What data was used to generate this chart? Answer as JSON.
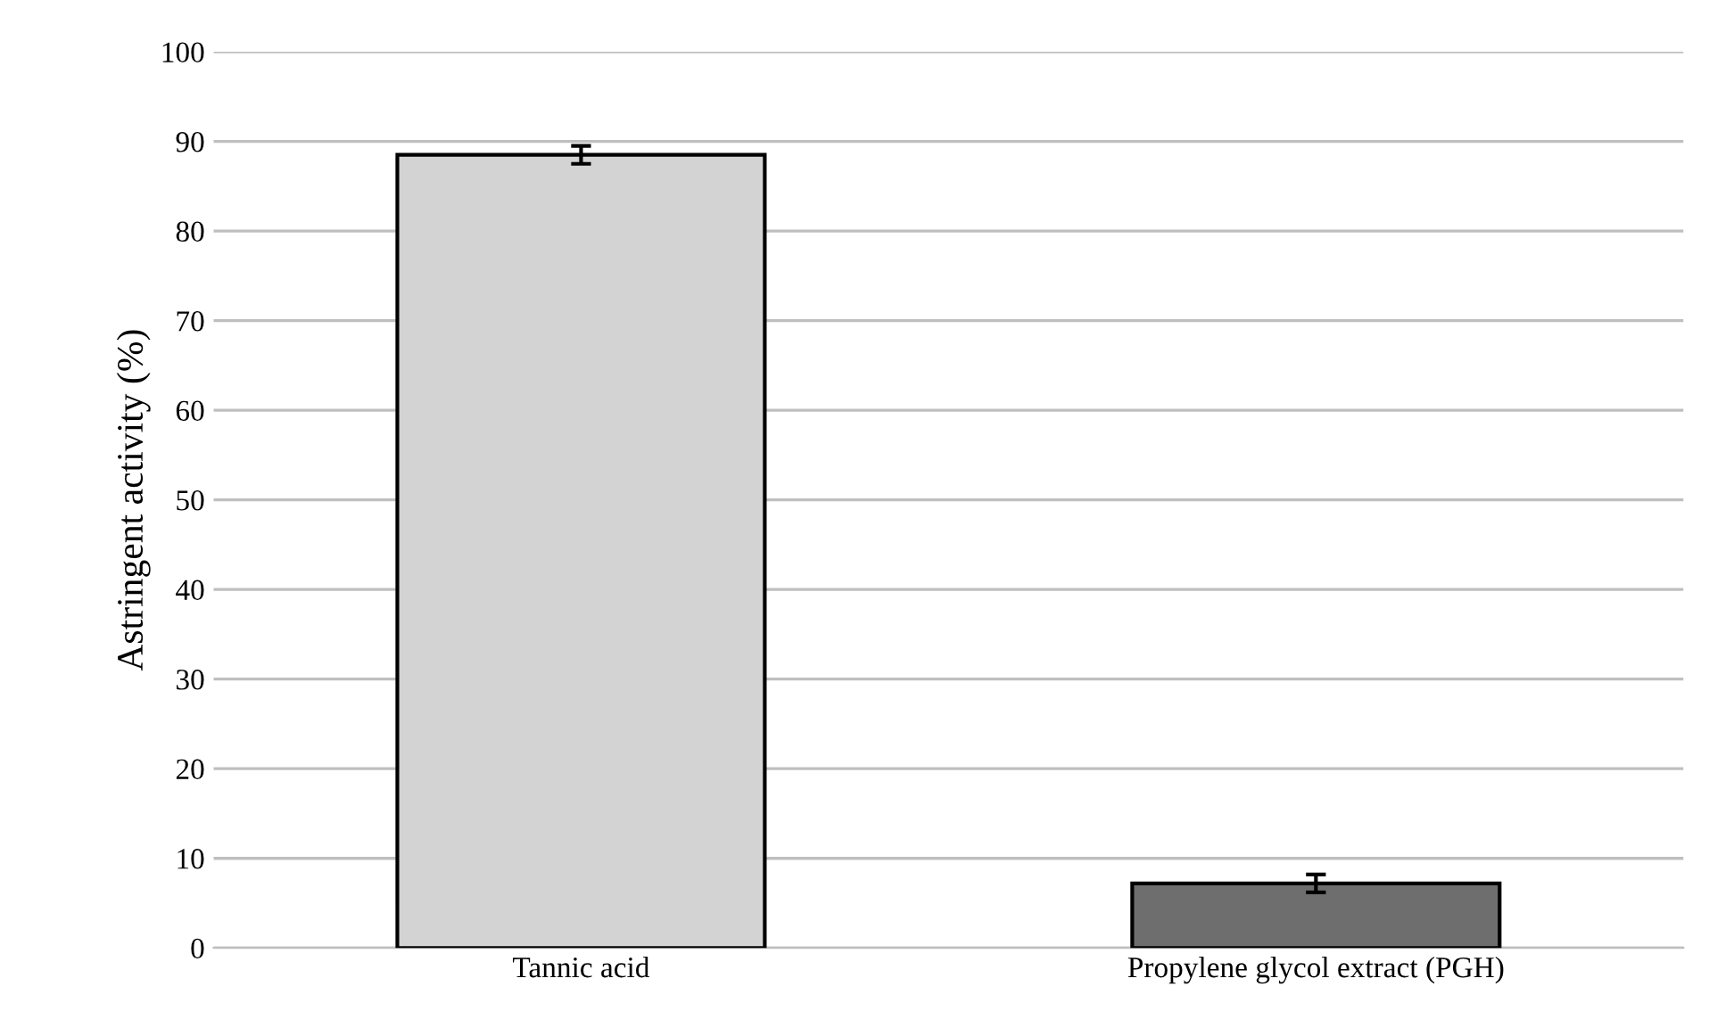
{
  "chart_data": {
    "type": "bar",
    "ylabel": "Astringent activity (%)",
    "categories": [
      "Tannic acid",
      "Propylene glycol extract (PGH)"
    ],
    "values": [
      88.5,
      7.2
    ],
    "errors": [
      1.0,
      1.0
    ],
    "colors": [
      "#d3d3d3",
      "#6e6e6e"
    ],
    "ylim": [
      0,
      100
    ],
    "yticks": [
      0,
      10,
      20,
      30,
      40,
      50,
      60,
      70,
      80,
      90,
      100
    ],
    "grid": "y"
  }
}
